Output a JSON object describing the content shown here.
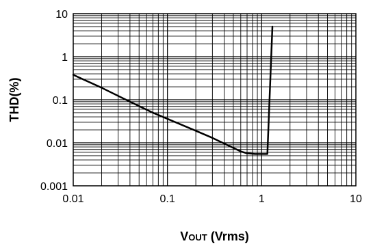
{
  "chart_data": {
    "type": "line",
    "x_scale": "log",
    "y_scale": "log",
    "xlim": [
      0.01,
      10
    ],
    "ylim": [
      0.001,
      10
    ],
    "grid": true,
    "xlabel": {
      "prefix": "V",
      "sub": "OUT",
      "suffix": " (Vrms)"
    },
    "ylabel": "THD(%)",
    "x_ticks": [
      {
        "value": 0.01,
        "label": "0.01"
      },
      {
        "value": 0.1,
        "label": "0.1"
      },
      {
        "value": 1,
        "label": "1"
      },
      {
        "value": 10,
        "label": "10"
      }
    ],
    "y_ticks": [
      {
        "value": 0.001,
        "label": "0.001"
      },
      {
        "value": 0.01,
        "label": "0.01"
      },
      {
        "value": 0.1,
        "label": "0.1"
      },
      {
        "value": 1,
        "label": "1"
      },
      {
        "value": 10,
        "label": "10"
      }
    ],
    "series": [
      {
        "color": "#000000",
        "points": [
          [
            0.01,
            0.38
          ],
          [
            0.02,
            0.19
          ],
          [
            0.04,
            0.09
          ],
          [
            0.07,
            0.05
          ],
          [
            0.1,
            0.036
          ],
          [
            0.2,
            0.019
          ],
          [
            0.3,
            0.013
          ],
          [
            0.45,
            0.0085
          ],
          [
            0.6,
            0.0063
          ],
          [
            0.7,
            0.0057
          ],
          [
            0.85,
            0.0055
          ],
          [
            1.15,
            0.0055
          ],
          [
            1.3,
            5.0
          ]
        ]
      }
    ]
  }
}
